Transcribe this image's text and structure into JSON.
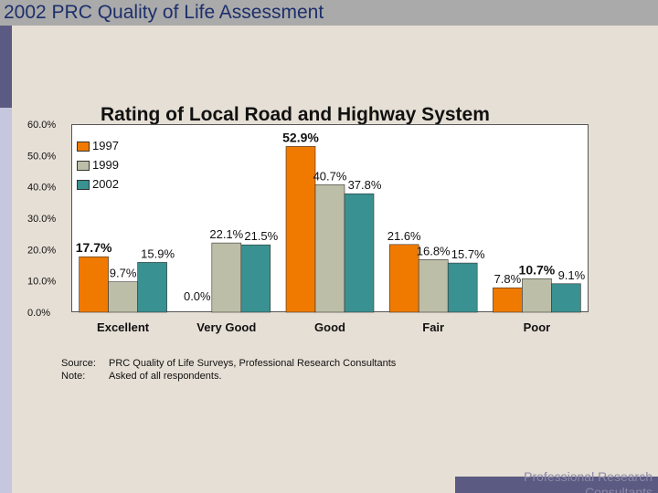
{
  "header": {
    "title": "2002 PRC Quality of Life Assessment"
  },
  "footer": {
    "text": "Professional Research Consultants"
  },
  "notes": {
    "source_label": "Source:",
    "source_text": "PRC Quality of Life Surveys, Professional Research Consultants",
    "note_label": "Note:",
    "note_text": "Asked of all respondents."
  },
  "colors": {
    "1997": "#f07a00",
    "1999": "#bdbea8",
    "2002": "#3a9191"
  },
  "chart_data": {
    "type": "bar",
    "title": "Rating of Local Road and Highway System",
    "xlabel": "",
    "ylabel": "",
    "ylim": [
      0,
      60
    ],
    "yticks": [
      "0.0%",
      "10.0%",
      "20.0%",
      "30.0%",
      "40.0%",
      "50.0%",
      "60.0%"
    ],
    "legend": "top-left",
    "categories": [
      "Excellent",
      "Very Good",
      "Good",
      "Fair",
      "Poor"
    ],
    "series": [
      {
        "name": "1997",
        "values": [
          17.7,
          null,
          52.9,
          21.6,
          7.8
        ],
        "labels": [
          "17.7%",
          "",
          "52.9%",
          "21.6%",
          "7.8%"
        ]
      },
      {
        "name": "1999",
        "values": [
          9.7,
          22.1,
          40.7,
          16.8,
          10.7
        ],
        "labels": [
          "9.7%",
          "22.1%",
          "40.7%",
          "16.8%",
          "10.7%"
        ]
      },
      {
        "name": "2002",
        "values": [
          15.9,
          21.5,
          37.8,
          15.7,
          9.1
        ],
        "labels": [
          "15.9%",
          "21.5%",
          "37.8%",
          "15.7%",
          "9.1%"
        ]
      }
    ],
    "extra_labels": [
      {
        "category": "Very Good",
        "text": "0.0%"
      }
    ]
  }
}
